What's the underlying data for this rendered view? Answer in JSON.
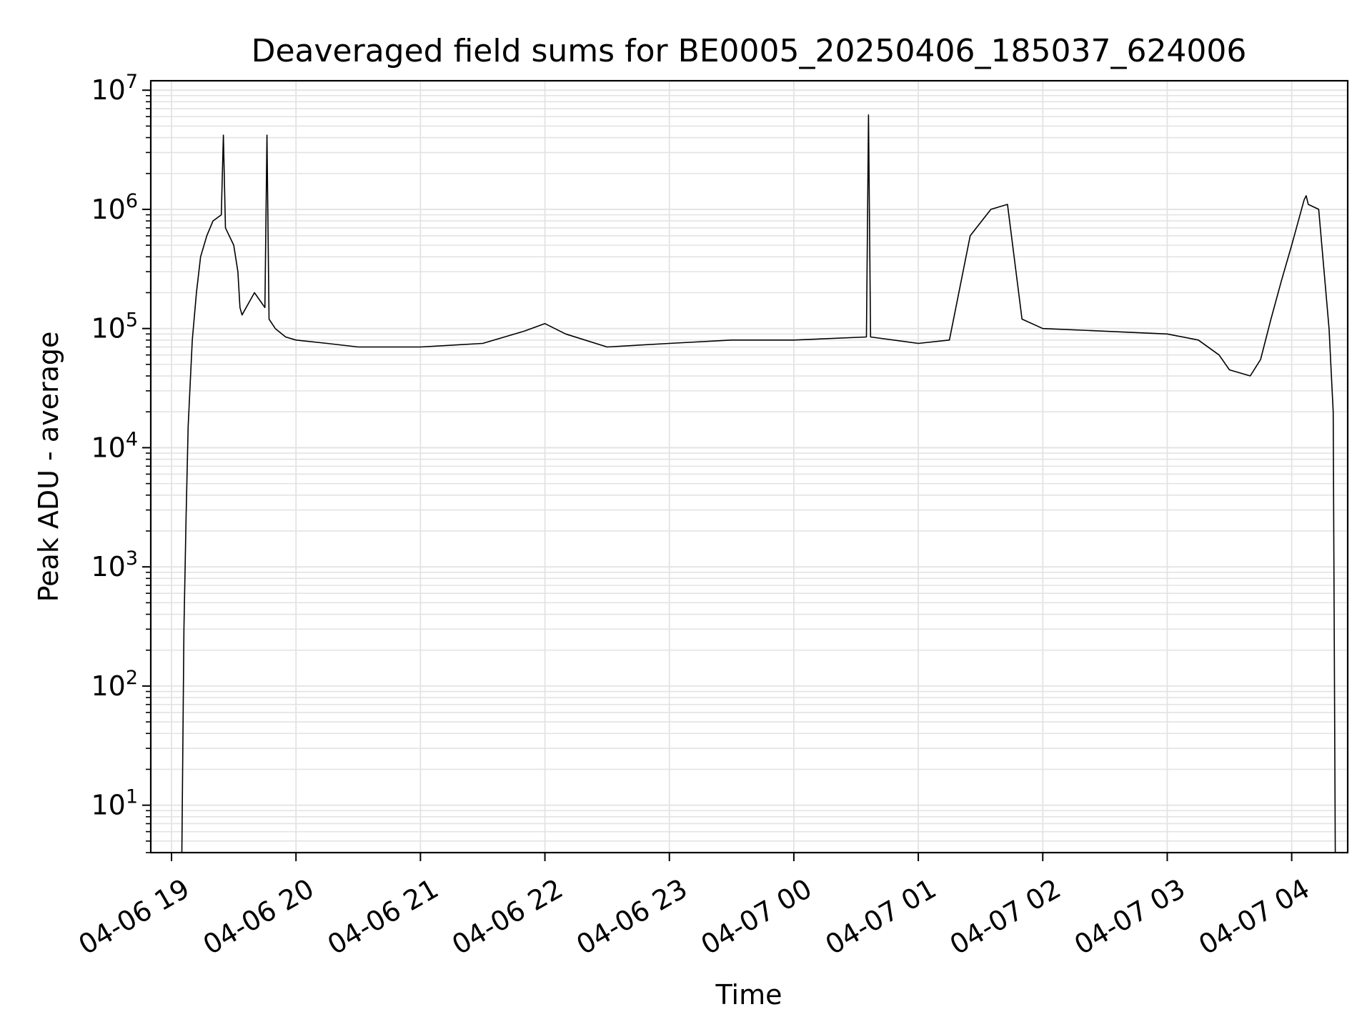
{
  "chart_data": {
    "type": "line",
    "title": "Deaveraged field sums for BE0005_20250406_185037_624006",
    "xlabel": "Time",
    "ylabel": "Peak ADU - average",
    "yscale": "log",
    "ylim": [
      4,
      12000000
    ],
    "xlim": [
      "2025-04-06 18:50",
      "2025-04-07 04:27"
    ],
    "grid": true,
    "legend": "none",
    "line_color": "#000000",
    "grid_color": "#e3e3e3",
    "x_ticks": [
      {
        "time": "2025-04-06 19:00",
        "label": "04-06 19"
      },
      {
        "time": "2025-04-06 20:00",
        "label": "04-06 20"
      },
      {
        "time": "2025-04-06 21:00",
        "label": "04-06 21"
      },
      {
        "time": "2025-04-06 22:00",
        "label": "04-06 22"
      },
      {
        "time": "2025-04-06 23:00",
        "label": "04-06 23"
      },
      {
        "time": "2025-04-07 00:00",
        "label": "04-07 00"
      },
      {
        "time": "2025-04-07 01:00",
        "label": "04-07 01"
      },
      {
        "time": "2025-04-07 02:00",
        "label": "04-07 02"
      },
      {
        "time": "2025-04-07 03:00",
        "label": "04-07 03"
      },
      {
        "time": "2025-04-07 04:00",
        "label": "04-07 04"
      }
    ],
    "y_ticks": [
      {
        "value": 10,
        "exp": "1"
      },
      {
        "value": 100,
        "exp": "2"
      },
      {
        "value": 1000,
        "exp": "3"
      },
      {
        "value": 10000,
        "exp": "4"
      },
      {
        "value": 100000,
        "exp": "5"
      },
      {
        "value": 1000000,
        "exp": "6"
      },
      {
        "value": 10000000,
        "exp": "7"
      }
    ],
    "series": [
      {
        "x": [
          "2025-04-06 19:05",
          "2025-04-06 19:06",
          "2025-04-06 19:07",
          "2025-04-06 19:08",
          "2025-04-06 19:09",
          "2025-04-06 19:10",
          "2025-04-06 19:12",
          "2025-04-06 19:14",
          "2025-04-06 19:17",
          "2025-04-06 19:20",
          "2025-04-06 19:24",
          "2025-04-06 19:25",
          "2025-04-06 19:26",
          "2025-04-06 19:30",
          "2025-04-06 19:32",
          "2025-04-06 19:33",
          "2025-04-06 19:34",
          "2025-04-06 19:40",
          "2025-04-06 19:45",
          "2025-04-06 19:46",
          "2025-04-06 19:47",
          "2025-04-06 19:50",
          "2025-04-06 19:55",
          "2025-04-06 20:00",
          "2025-04-06 20:15",
          "2025-04-06 20:30",
          "2025-04-06 21:00",
          "2025-04-06 21:30",
          "2025-04-06 21:50",
          "2025-04-06 22:00",
          "2025-04-06 22:10",
          "2025-04-06 22:30",
          "2025-04-06 23:00",
          "2025-04-06 23:30",
          "2025-04-07 00:00",
          "2025-04-07 00:35",
          "2025-04-07 00:36",
          "2025-04-07 00:37",
          "2025-04-07 01:00",
          "2025-04-07 01:15",
          "2025-04-07 01:25",
          "2025-04-07 01:35",
          "2025-04-07 01:43",
          "2025-04-07 01:50",
          "2025-04-07 02:00",
          "2025-04-07 02:30",
          "2025-04-07 03:00",
          "2025-04-07 03:15",
          "2025-04-07 03:25",
          "2025-04-07 03:30",
          "2025-04-07 03:40",
          "2025-04-07 03:45",
          "2025-04-07 03:50",
          "2025-04-07 03:55",
          "2025-04-07 04:00",
          "2025-04-07 04:06",
          "2025-04-07 04:07",
          "2025-04-07 04:08",
          "2025-04-07 04:13",
          "2025-04-07 04:18",
          "2025-04-07 04:20",
          "2025-04-07 04:21"
        ],
        "y": [
          4,
          300,
          2600,
          15000,
          35000,
          80000,
          200000,
          400000,
          600000,
          800000,
          900000,
          4200000,
          700000,
          500000,
          300000,
          150000,
          130000,
          200000,
          150000,
          4200000,
          120000,
          100000,
          85000,
          80000,
          75000,
          70000,
          70000,
          75000,
          95000,
          110000,
          90000,
          70000,
          75000,
          80000,
          80000,
          85000,
          6200000,
          85000,
          75000,
          80000,
          600000,
          1000000,
          1100000,
          120000,
          100000,
          95000,
          90000,
          80000,
          60000,
          45000,
          40000,
          55000,
          120000,
          250000,
          500000,
          1200000,
          1300000,
          1100000,
          1000000,
          100000,
          20000,
          4
        ]
      }
    ]
  }
}
